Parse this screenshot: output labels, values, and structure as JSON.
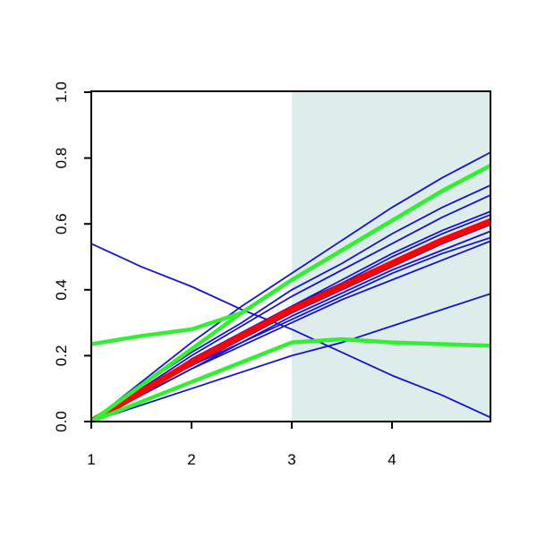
{
  "chart_data": {
    "type": "line",
    "x": [
      1,
      1.5,
      2,
      2.5,
      3,
      3.5,
      4,
      4.5,
      5
    ],
    "shade": {
      "from": 3,
      "to": 5,
      "color": "#dfecec"
    },
    "series": [
      {
        "color": "#1414cc",
        "values": [
          0,
          0.12,
          0.24,
          0.35,
          0.45,
          0.55,
          0.65,
          0.74,
          0.82
        ]
      },
      {
        "color": "#1414cc",
        "values": [
          0,
          0.11,
          0.21,
          0.3,
          0.4,
          0.48,
          0.57,
          0.65,
          0.72
        ]
      },
      {
        "color": "#1414cc",
        "values": [
          0,
          0.1,
          0.2,
          0.29,
          0.38,
          0.46,
          0.54,
          0.62,
          0.69
        ]
      },
      {
        "color": "#1414cc",
        "values": [
          0,
          0.09,
          0.19,
          0.27,
          0.35,
          0.43,
          0.51,
          0.58,
          0.64
        ]
      },
      {
        "color": "#1414cc",
        "values": [
          0,
          0.09,
          0.18,
          0.27,
          0.35,
          0.42,
          0.5,
          0.57,
          0.63
        ]
      },
      {
        "color": "#1414cc",
        "values": [
          0,
          0.09,
          0.17,
          0.25,
          0.33,
          0.4,
          0.47,
          0.54,
          0.6
        ]
      },
      {
        "color": "#1414cc",
        "values": [
          0,
          0.09,
          0.17,
          0.24,
          0.32,
          0.39,
          0.46,
          0.52,
          0.58
        ]
      },
      {
        "color": "#1414cc",
        "values": [
          0,
          0.08,
          0.16,
          0.24,
          0.31,
          0.38,
          0.45,
          0.51,
          0.56
        ]
      },
      {
        "color": "#1414cc",
        "values": [
          0,
          0.08,
          0.16,
          0.23,
          0.3,
          0.37,
          0.43,
          0.49,
          0.55
        ]
      },
      {
        "color": "#1414cc",
        "values": [
          0,
          0.05,
          0.1,
          0.15,
          0.2,
          0.24,
          0.29,
          0.34,
          0.39
        ]
      },
      {
        "color": "#1414cc",
        "values": [
          0.54,
          0.47,
          0.41,
          0.34,
          0.28,
          0.21,
          0.14,
          0.08,
          0.01
        ]
      },
      {
        "color": "#ff0000",
        "values": [
          0,
          0.09,
          0.18,
          0.26,
          0.34,
          0.41,
          0.48,
          0.55,
          0.61
        ]
      },
      {
        "color": "#33ee33",
        "values": [
          0,
          0.11,
          0.22,
          0.33,
          0.43,
          0.52,
          0.61,
          0.7,
          0.78
        ]
      },
      {
        "color": "#33ee33",
        "values": [
          0.235,
          0.26,
          0.28,
          0.33,
          0.43,
          0.52,
          0.61,
          0.7,
          0.78
        ]
      },
      {
        "color": "#33ee33",
        "values": [
          0,
          0.06,
          0.12,
          0.18,
          0.24,
          0.25,
          0.24,
          0.235,
          0.23
        ]
      }
    ],
    "xlim": [
      1,
      5
    ],
    "xticks": [
      1,
      2,
      3,
      4
    ],
    "ylim": [
      0,
      1
    ],
    "yticks": [
      {
        "value": 0,
        "label": "0.0"
      },
      0.2,
      0.4,
      0.6,
      0.8,
      {
        "value": 1,
        "label": "1.0"
      }
    ]
  }
}
